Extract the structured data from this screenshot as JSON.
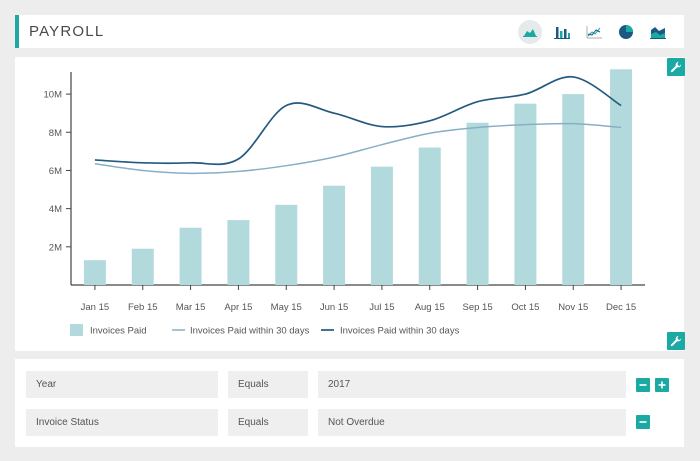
{
  "header": {
    "title": "PAYROLL"
  },
  "chart_type_icons": [
    {
      "name": "area-chart-icon",
      "active": true
    },
    {
      "name": "bar-chart-icon",
      "active": false
    },
    {
      "name": "line-chart-icon",
      "active": false
    },
    {
      "name": "pie-chart-icon",
      "active": false
    },
    {
      "name": "area-mountain-chart-icon",
      "active": false
    }
  ],
  "colors": {
    "accent": "#1aaaa3",
    "bar": "#b2dadc",
    "line_light": "#88afc6",
    "line_dark": "#245a80"
  },
  "chart_data": {
    "type": "bar",
    "categories": [
      "Jan 15",
      "Feb 15",
      "Mar 15",
      "Apr 15",
      "May 15",
      "Jun 15",
      "Jul 15",
      "Aug 15",
      "Sep 15",
      "Oct 15",
      "Nov 15",
      "Dec 15"
    ],
    "y_ticks": [
      "2M",
      "4M",
      "6M",
      "8M",
      "10M"
    ],
    "ylim": [
      0,
      11000000
    ],
    "series": [
      {
        "name": "Invoices Paid",
        "type": "bar",
        "values": [
          1300000,
          1900000,
          3000000,
          3400000,
          4200000,
          5200000,
          6200000,
          7200000,
          8500000,
          9500000,
          10000000,
          11300000
        ]
      },
      {
        "name": "Invoices Paid within 30 days",
        "type": "line",
        "values": [
          6350000,
          6000000,
          5850000,
          5950000,
          6250000,
          6700000,
          7350000,
          7950000,
          8250000,
          8400000,
          8450000,
          8250000
        ]
      },
      {
        "name": "Invoices Paid within 30 days",
        "type": "line",
        "values": [
          6550000,
          6400000,
          6400000,
          6600000,
          9400000,
          9000000,
          8300000,
          8600000,
          9600000,
          10000000,
          10900000,
          9400000
        ]
      }
    ],
    "legend_position": "bottom-left",
    "grid": false
  },
  "filters": [
    {
      "field": "Year",
      "operator": "Equals",
      "value": "2017",
      "buttons": [
        "remove",
        "add"
      ]
    },
    {
      "field": "Invoice Status",
      "operator": "Equals",
      "value": "Not Overdue",
      "buttons": [
        "remove"
      ]
    }
  ]
}
